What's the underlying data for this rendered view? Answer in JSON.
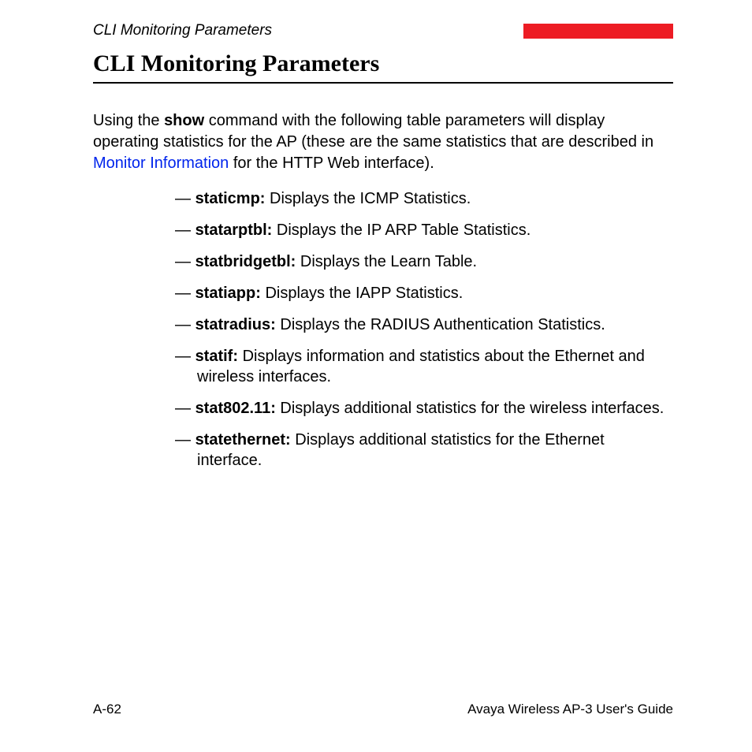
{
  "header": {
    "running_title": "CLI Monitoring Parameters",
    "accent_color": "#ed1c24"
  },
  "heading": "CLI Monitoring Parameters",
  "intro": {
    "pre": "Using the ",
    "bold": "show",
    "mid": " command with the following table parameters will display operating statistics for the AP (these are the same statistics that are described in ",
    "link": "Monitor Information",
    "post": " for the HTTP Web interface)."
  },
  "parameters": [
    {
      "term": "staticmp:",
      "desc": " Displays the ICMP Statistics."
    },
    {
      "term": "statarptbl:",
      "desc": " Displays the IP ARP Table Statistics."
    },
    {
      "term": "statbridgetbl:",
      "desc": " Displays the Learn Table."
    },
    {
      "term": "statiapp:",
      "desc": " Displays the IAPP Statistics."
    },
    {
      "term": "statradius:",
      "desc": " Displays the RADIUS Authentication Statistics."
    },
    {
      "term": "statif:",
      "desc": " Displays information and statistics about the Ethernet and wireless interfaces."
    },
    {
      "term": "stat802.11:",
      "desc": " Displays additional statistics for the wireless interfaces."
    },
    {
      "term": "statethernet:",
      "desc": " Displays additional statistics for the Ethernet interface."
    }
  ],
  "footer": {
    "page_number": "A-62",
    "doc_title": "Avaya Wireless AP-3 User's Guide"
  }
}
